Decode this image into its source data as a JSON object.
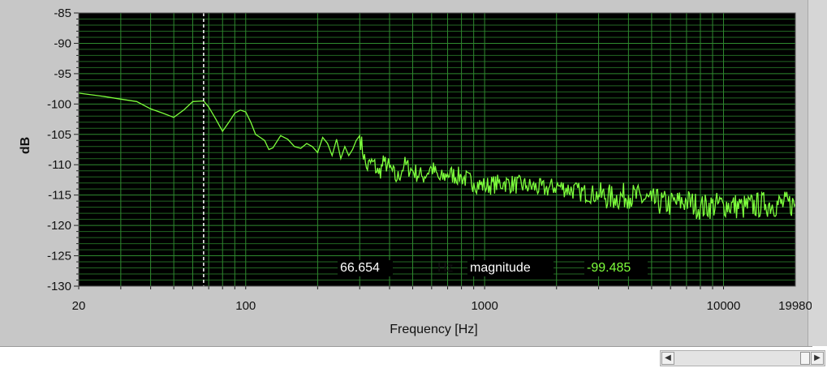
{
  "chart_data": {
    "type": "line",
    "xlabel": "Frequency [Hz]",
    "ylabel": "dB",
    "x_scale": "log",
    "xlim": [
      20,
      19980
    ],
    "ylim": [
      -130,
      -85
    ],
    "x_tick_labels": [
      "20",
      "100",
      "1000",
      "10000",
      "19980"
    ],
    "x_ticks": [
      20,
      100,
      1000,
      10000,
      19980
    ],
    "y_ticks": [
      -85,
      -90,
      -95,
      -100,
      -105,
      -110,
      -115,
      -120,
      -125,
      -130
    ],
    "y_tick_labels": [
      "-85",
      "-90",
      "-95",
      "-100",
      "-105",
      "-110",
      "-115",
      "-120",
      "-125",
      "-130"
    ],
    "grid": true,
    "background_color": "#000000",
    "grid_color": "#2f8a2f",
    "line_color": "#7dff3c",
    "cursor_color": "#ffffff",
    "series": [
      {
        "x": [
          20,
          25,
          30,
          35,
          40,
          45,
          50,
          55,
          60,
          66.654,
          70,
          75,
          80,
          85,
          90,
          95,
          100,
          105,
          110,
          115,
          120,
          125,
          130,
          140,
          150,
          160,
          170,
          180,
          190,
          200,
          210,
          220,
          230,
          240,
          250,
          260,
          270,
          280,
          290,
          300,
          320,
          340,
          360,
          380,
          400,
          430,
          460,
          500,
          550,
          600,
          650,
          700,
          800,
          900,
          1000,
          1200,
          1500,
          1800,
          2000,
          2500,
          3000,
          3500,
          4000,
          5000,
          6000,
          7000,
          8000,
          10000,
          12000,
          15000,
          19980
        ],
        "y": [
          -98.2,
          -98.7,
          -99.2,
          -99.6,
          -100.8,
          -101.5,
          -102.2,
          -101,
          -99.6,
          -99.485,
          -100.5,
          -102.5,
          -104.5,
          -103,
          -101.5,
          -101,
          -101.3,
          -103,
          -105,
          -105.5,
          -106,
          -107.5,
          -107.2,
          -105.2,
          -105.8,
          -107,
          -107.3,
          -106.5,
          -107,
          -108,
          -105.5,
          -106.5,
          -108.5,
          -105.8,
          -109,
          -107,
          -108.5,
          -107.5,
          -106,
          -105.2,
          -110.5,
          -109.5,
          -111.5,
          -109.5,
          -110.5,
          -112.5,
          -110,
          -111,
          -112,
          -110.5,
          -112.5,
          -111.5,
          -112,
          -113,
          -113.5,
          -113,
          -113.5,
          -114,
          -113.5,
          -114.5,
          -115,
          -115.5,
          -115,
          -116,
          -116.5,
          -116,
          -117,
          -116.5,
          -117,
          -116.5,
          -116.5
        ]
      }
    ],
    "cursor": {
      "frequency": 66.654,
      "magnitude": -99.485
    }
  },
  "readout": {
    "frequency": "66.654",
    "freq_unit": "Hz",
    "magnitude_label": "magnitude",
    "magnitude_value": "-99.485"
  }
}
